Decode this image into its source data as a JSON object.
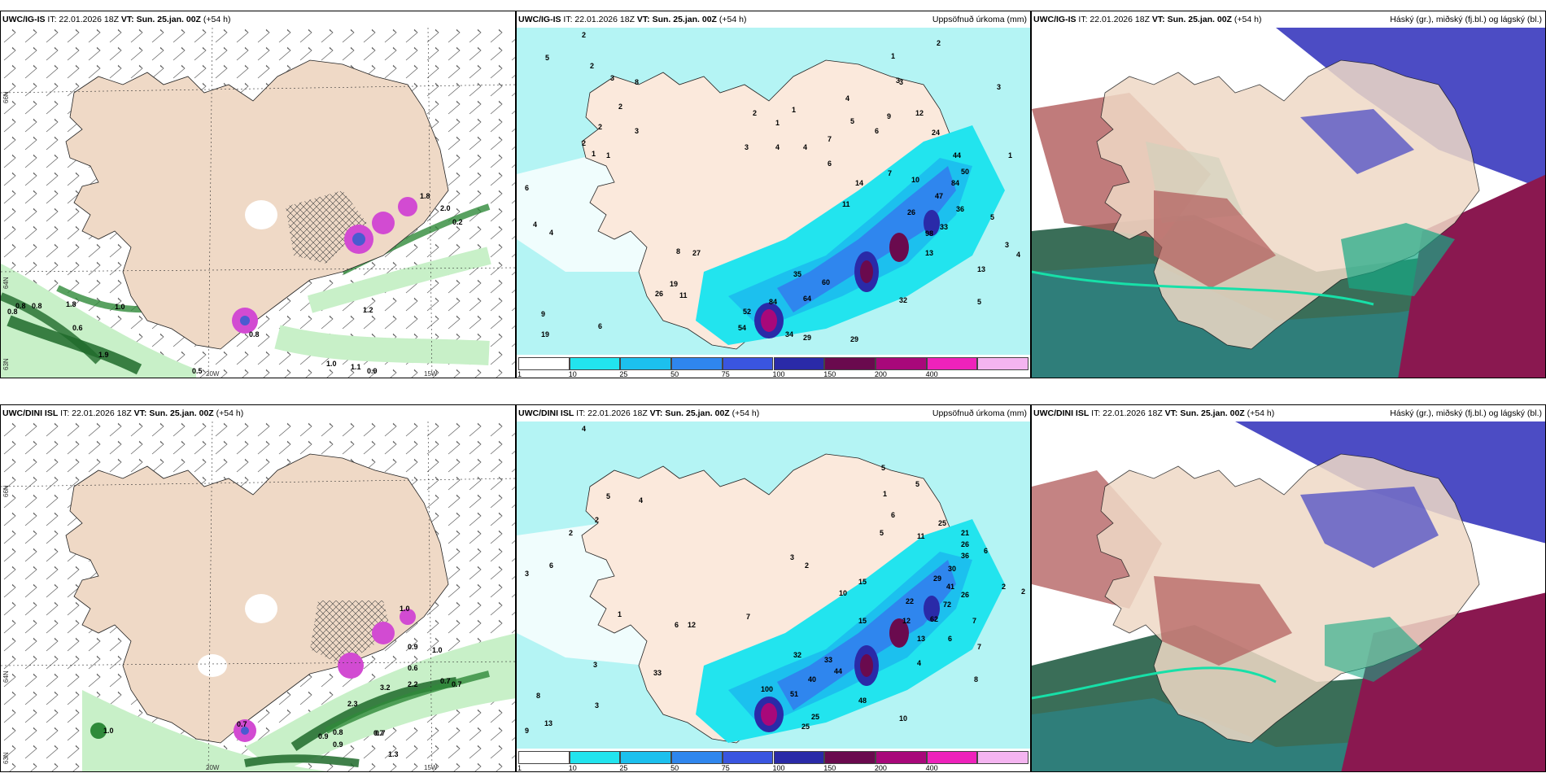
{
  "panels": [
    {
      "model": "UWC/IG-IS",
      "it": "IT: 22.01.2026 18Z",
      "vt": "VT: Sun. 25.jan. 00Z",
      "step": "(+54 h)",
      "right": ""
    },
    {
      "model": "UWC/IG-IS",
      "it": "IT: 22.01.2026 18Z",
      "vt": "VT: Sun. 25.jan. 00Z",
      "step": "(+54 h)",
      "right": "Uppsöfnuð úrkoma (mm)"
    },
    {
      "model": "UWC/IG-IS",
      "it": "IT: 22.01.2026 18Z",
      "vt": "VT: Sun. 25.jan. 00Z",
      "step": "(+54 h)",
      "right": "Háský (gr.), miðský (fj.bl.) og lágský (bl.)"
    },
    {
      "model": "UWC/DINI ISL",
      "it": "IT: 22.01.2026 18Z",
      "vt": "VT: Sun. 25.jan. 00Z",
      "step": "(+54 h)",
      "right": ""
    },
    {
      "model": "UWC/DINI ISL",
      "it": "IT: 22.01.2026 18Z",
      "vt": "VT: Sun. 25.jan. 00Z",
      "step": "(+54 h)",
      "right": "Uppsöfnuð úrkoma (mm)"
    },
    {
      "model": "UWC/DINI ISL",
      "it": "IT: 22.01.2026 18Z",
      "vt": "VT: Sun. 25.jan. 00Z",
      "step": "(+54 h)",
      "right": "Háský (gr.), miðský (fj.bl.) og lágský (bl.)"
    }
  ],
  "axes": {
    "lat66": "66N",
    "lat64": "64N",
    "lat63": "63N",
    "lon20": "20W",
    "lon15": "15W"
  },
  "scale": {
    "ticks": [
      "1",
      "10",
      "25",
      "50",
      "75",
      "100",
      "150",
      "200",
      "400"
    ],
    "colors": [
      "#ffffff",
      "#22e4ee",
      "#1cc0ee",
      "#2f86ee",
      "#3a55e0",
      "#2a2aa8",
      "#6a0a4e",
      "#a8087a",
      "#ee22bb",
      "#f4b4f0"
    ]
  },
  "colors": {
    "land": "#efd9c6",
    "precip_light": "#b4f4f4",
    "precip_mid": "#22e4ee",
    "cloud_high": "#17a884",
    "cloud_mid": "#4c4cc4",
    "cloud_low": "#8a1850"
  },
  "wind_values_ig": [
    "0.8",
    "0.8",
    "0.8",
    "1.8",
    "0.6",
    "1.9",
    "0.5",
    "1.0",
    "1.1",
    "1.0",
    "0.9",
    "1.2",
    "0.8",
    "0.2",
    "1.8",
    "2.0"
  ],
  "wind_values_dini": [
    "0.7",
    "0.9",
    "0.8",
    "1.0",
    "0.9",
    "0.7",
    "1.0",
    "0.6",
    "3.2",
    "2.2",
    "0.7",
    "0.7",
    "1.0",
    "0.9",
    "2.3",
    "0.7",
    "1.3"
  ],
  "precip_values_ig": [
    "2",
    "5",
    "2",
    "3",
    "8",
    "2",
    "3",
    "2",
    "2",
    "1",
    "1",
    "1",
    "1",
    "4",
    "4",
    "6",
    "7",
    "5",
    "4",
    "6",
    "3",
    "2",
    "27",
    "19",
    "26",
    "11",
    "35",
    "60",
    "64",
    "52",
    "84",
    "54",
    "34",
    "29",
    "29",
    "32",
    "13",
    "5",
    "4",
    "4",
    "9",
    "19",
    "6",
    "8",
    "24",
    "44",
    "50",
    "84",
    "47",
    "33",
    "98",
    "36",
    "3",
    "4",
    "5",
    "1",
    "14",
    "12",
    "9",
    "6",
    "1",
    "2",
    "3",
    "13",
    "26",
    "11",
    "10",
    "7",
    "3",
    "3"
  ],
  "precip_values_dini": [
    "4",
    "6",
    "5",
    "2",
    "4",
    "3",
    "3",
    "1",
    "8",
    "3",
    "13",
    "9",
    "12",
    "6",
    "7",
    "3",
    "2",
    "2",
    "33",
    "32",
    "33",
    "44",
    "40",
    "51",
    "100",
    "25",
    "25",
    "48",
    "10",
    "13",
    "12",
    "15",
    "10",
    "22",
    "29",
    "41",
    "26",
    "30",
    "72",
    "62",
    "6",
    "7",
    "8",
    "4",
    "5",
    "5",
    "6",
    "11",
    "25",
    "21",
    "26",
    "36",
    "1",
    "6",
    "5",
    "2",
    "2",
    "7",
    "15"
  ]
}
